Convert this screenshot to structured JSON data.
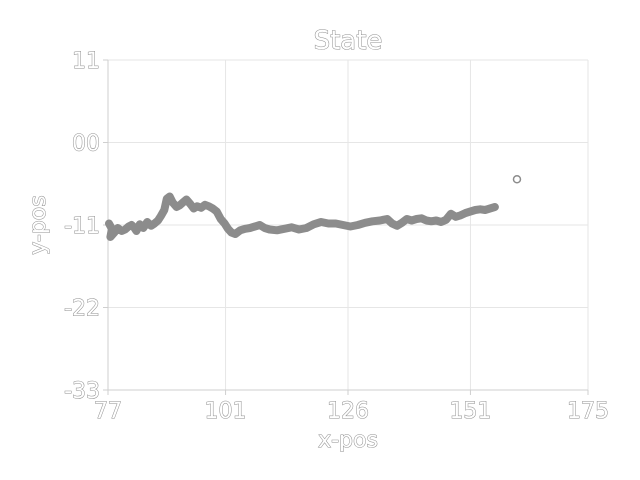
{
  "chart_data": {
    "type": "line",
    "title": "State",
    "xlabel": "x-pos",
    "ylabel": "y-pos",
    "xlim": [
      77,
      175
    ],
    "ylim": [
      -33,
      11
    ],
    "x_ticks": [
      77,
      101,
      126,
      151,
      175
    ],
    "x_tick_labels": [
      "77",
      "101",
      "126",
      "151",
      "175"
    ],
    "y_ticks": [
      11,
      0,
      -11,
      -22,
      -33
    ],
    "y_tick_labels": [
      "11",
      "00",
      "-11",
      "-22",
      "-33"
    ],
    "grid": true,
    "colors": {
      "path": "#8c8c8c",
      "marker": "#8c8c8c",
      "grid": "#e6e6e6"
    },
    "series": [
      {
        "type": "line",
        "x": [
          77.2,
          77.8,
          77.5,
          78.3,
          79.0,
          79.8,
          80.5,
          81.2,
          81.8,
          82.3,
          82.8,
          83.5,
          84.2,
          85.0,
          85.8,
          86.5,
          87.2,
          87.8,
          88.5,
          89.0,
          89.6,
          90.2,
          91.0,
          91.6,
          92.3,
          93.0,
          93.8,
          94.5,
          95.2,
          96.0,
          96.8,
          97.6,
          98.4,
          99.2,
          100.0,
          100.8,
          101.5,
          102.2,
          103.0,
          104.0,
          105.0,
          106.0,
          107.0,
          108.0,
          109.0,
          110.0,
          111.5,
          113.0,
          114.5,
          116.0,
          117.5,
          119.0,
          120.5,
          122.0,
          123.5,
          125.0,
          126.5,
          128.0,
          129.5,
          131.0,
          132.5,
          134.0,
          135.0,
          136.0,
          137.0,
          138.0,
          139.0,
          140.0,
          141.0,
          142.0,
          143.0,
          144.0,
          145.0,
          146.0,
          147.0,
          148.0,
          149.0,
          150.0,
          151.0,
          152.0,
          153.0,
          154.0,
          155.0,
          156.0
        ],
        "y": [
          -10.8,
          -11.5,
          -12.6,
          -12.0,
          -11.4,
          -11.8,
          -11.6,
          -11.2,
          -11.0,
          -11.3,
          -11.8,
          -10.9,
          -11.4,
          -10.6,
          -11.1,
          -10.8,
          -10.4,
          -9.8,
          -9.0,
          -7.5,
          -7.2,
          -8.0,
          -8.6,
          -8.4,
          -8.0,
          -7.6,
          -8.2,
          -8.8,
          -8.5,
          -8.7,
          -8.3,
          -8.5,
          -8.8,
          -9.2,
          -10.2,
          -10.8,
          -11.5,
          -12.0,
          -12.2,
          -11.7,
          -11.5,
          -11.4,
          -11.2,
          -11.0,
          -11.4,
          -11.6,
          -11.7,
          -11.5,
          -11.3,
          -11.6,
          -11.4,
          -10.9,
          -10.6,
          -10.8,
          -10.8,
          -11.0,
          -11.2,
          -11.0,
          -10.7,
          -10.5,
          -10.4,
          -10.2,
          -10.8,
          -11.1,
          -10.7,
          -10.2,
          -10.4,
          -10.2,
          -10.1,
          -10.4,
          -10.5,
          -10.4,
          -10.6,
          -10.3,
          -9.5,
          -9.9,
          -9.7,
          -9.4,
          -9.2,
          -9.0,
          -8.9,
          -9.0,
          -8.8,
          -8.6
        ]
      },
      {
        "type": "scatter",
        "x": [
          160.5
        ],
        "y": [
          -4.9
        ]
      }
    ]
  }
}
